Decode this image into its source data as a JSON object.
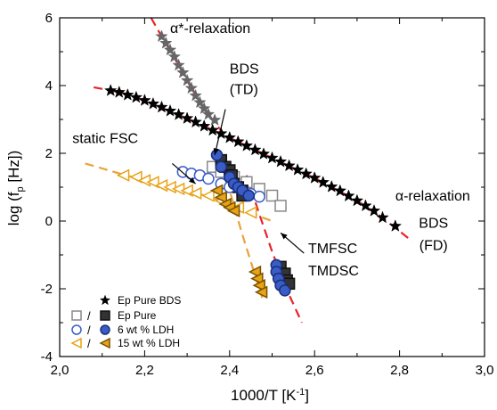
{
  "chart_data": {
    "type": "scatter",
    "xlabel": "1000/T [K",
    "xlabel_sup": "-1",
    "xlabel_end": "]",
    "ylabel_pre": "log (f",
    "ylabel_sub": "p",
    "ylabel_post": " [Hz])",
    "xlim": [
      2.0,
      3.0
    ],
    "ylim": [
      -4,
      6
    ],
    "x_ticks": [
      2.0,
      2.2,
      2.4,
      2.6,
      2.8,
      3.0
    ],
    "x_tick_labels": [
      "2,0",
      "2,2",
      "2,4",
      "2,6",
      "2,8",
      "3,0"
    ],
    "y_ticks": [
      -4,
      -2,
      0,
      2,
      4,
      6
    ],
    "y_tick_labels": [
      "-4",
      "-2",
      "0",
      "2",
      "4",
      "6"
    ],
    "grid": false,
    "legend_position": "bottom-left",
    "series": [
      {
        "name": "Ep Pure BDS",
        "marker": "star",
        "color": "#000000",
        "filled": true,
        "points": [
          [
            2.12,
            3.85
          ],
          [
            2.14,
            3.8
          ],
          [
            2.16,
            3.72
          ],
          [
            2.18,
            3.65
          ],
          [
            2.2,
            3.56
          ],
          [
            2.22,
            3.46
          ],
          [
            2.24,
            3.36
          ],
          [
            2.26,
            3.25
          ],
          [
            2.28,
            3.14
          ],
          [
            2.3,
            3.03
          ],
          [
            2.32,
            2.92
          ],
          [
            2.34,
            2.8
          ],
          [
            2.36,
            2.68
          ],
          [
            2.38,
            2.58
          ],
          [
            2.4,
            2.46
          ],
          [
            2.42,
            2.34
          ],
          [
            2.44,
            2.22
          ],
          [
            2.46,
            2.1
          ],
          [
            2.48,
            1.98
          ],
          [
            2.5,
            1.86
          ],
          [
            2.52,
            1.75
          ],
          [
            2.54,
            1.63
          ],
          [
            2.56,
            1.51
          ],
          [
            2.58,
            1.39
          ],
          [
            2.6,
            1.27
          ],
          [
            2.62,
            1.14
          ],
          [
            2.64,
            1.01
          ],
          [
            2.66,
            0.89
          ],
          [
            2.68,
            0.74
          ],
          [
            2.7,
            0.6
          ],
          [
            2.72,
            0.45
          ],
          [
            2.74,
            0.3
          ],
          [
            2.76,
            0.1
          ],
          [
            2.79,
            -0.15
          ]
        ]
      },
      {
        "name": "",
        "marker": "star",
        "color": "#666666",
        "filled": true,
        "points": [
          [
            2.24,
            5.45
          ],
          [
            2.25,
            5.25
          ],
          [
            2.26,
            5.05
          ],
          [
            2.27,
            4.85
          ],
          [
            2.28,
            4.6
          ],
          [
            2.29,
            4.38
          ],
          [
            2.3,
            4.15
          ],
          [
            2.31,
            3.92
          ],
          [
            2.32,
            3.7
          ],
          [
            2.33,
            3.5
          ],
          [
            2.34,
            3.32
          ],
          [
            2.35,
            3.15
          ],
          [
            2.365,
            2.98
          ]
        ]
      },
      {
        "name": "Ep Pure",
        "marker": "square",
        "color": "#888888",
        "filled": false,
        "points": [
          [
            2.36,
            1.6
          ],
          [
            2.38,
            1.45
          ],
          [
            2.41,
            1.3
          ],
          [
            2.44,
            1.15
          ],
          [
            2.47,
            0.95
          ],
          [
            2.5,
            0.75
          ],
          [
            2.52,
            0.45
          ]
        ]
      },
      {
        "name": "",
        "marker": "square",
        "color": "#333333",
        "filled": true,
        "points": [
          [
            2.38,
            1.8
          ],
          [
            2.39,
            1.6
          ],
          [
            2.4,
            1.5
          ],
          [
            2.405,
            1.35
          ],
          [
            2.41,
            1.1
          ],
          [
            2.42,
            1.0
          ],
          [
            2.43,
            0.9
          ],
          [
            2.43,
            0.75
          ],
          [
            2.52,
            -1.35
          ],
          [
            2.53,
            -1.55
          ],
          [
            2.535,
            -1.75
          ],
          [
            2.54,
            -1.85
          ]
        ]
      },
      {
        "name": "6 wt % LDH",
        "marker": "circle",
        "color": "#3a5cc7",
        "filled": false,
        "points": [
          [
            2.29,
            1.45
          ],
          [
            2.31,
            1.4
          ],
          [
            2.33,
            1.35
          ],
          [
            2.35,
            1.25
          ],
          [
            2.38,
            1.1
          ],
          [
            2.4,
            1.0
          ],
          [
            2.42,
            1.0
          ],
          [
            2.45,
            0.8
          ],
          [
            2.47,
            0.72
          ]
        ]
      },
      {
        "name": "",
        "marker": "circle",
        "color": "#3a5cc7",
        "filled": true,
        "points": [
          [
            2.37,
            1.95
          ],
          [
            2.38,
            1.6
          ],
          [
            2.4,
            1.3
          ],
          [
            2.41,
            1.1
          ],
          [
            2.42,
            1.0
          ],
          [
            2.43,
            0.9
          ],
          [
            2.445,
            0.75
          ],
          [
            2.51,
            -1.3
          ],
          [
            2.51,
            -1.5
          ],
          [
            2.515,
            -1.7
          ],
          [
            2.52,
            -1.9
          ],
          [
            2.53,
            -2.05
          ]
        ]
      },
      {
        "name": "15 wt % LDH",
        "marker": "triangle-left",
        "color": "#e8a317",
        "filled": false,
        "points": [
          [
            2.15,
            1.35
          ],
          [
            2.18,
            1.3
          ],
          [
            2.2,
            1.2
          ],
          [
            2.22,
            1.15
          ],
          [
            2.24,
            1.05
          ],
          [
            2.26,
            1.0
          ],
          [
            2.28,
            0.95
          ],
          [
            2.3,
            0.9
          ],
          [
            2.32,
            0.82
          ],
          [
            2.35,
            0.75
          ],
          [
            2.38,
            0.6
          ],
          [
            2.42,
            0.4
          ],
          [
            2.45,
            0.25
          ]
        ]
      },
      {
        "name": "",
        "marker": "triangle-left",
        "color": "#e8a317",
        "filled": true,
        "points": [
          [
            2.37,
            0.9
          ],
          [
            2.38,
            0.7
          ],
          [
            2.39,
            0.5
          ],
          [
            2.4,
            0.4
          ],
          [
            2.41,
            0.3
          ],
          [
            2.46,
            -1.5
          ],
          [
            2.465,
            -1.7
          ],
          [
            2.47,
            -1.9
          ],
          [
            2.475,
            -2.1
          ]
        ]
      }
    ],
    "fit_lines": [
      {
        "color": "#e8232a",
        "dash": "10,6",
        "points": [
          [
            2.08,
            3.95
          ],
          [
            2.15,
            3.78
          ],
          [
            2.2,
            3.56
          ],
          [
            2.3,
            3.03
          ],
          [
            2.4,
            2.46
          ],
          [
            2.5,
            1.86
          ],
          [
            2.6,
            1.27
          ],
          [
            2.7,
            0.6
          ],
          [
            2.76,
            0.1
          ],
          [
            2.8,
            -0.3
          ],
          [
            2.83,
            -0.6
          ]
        ]
      },
      {
        "color": "#e8232a",
        "dash": "10,6",
        "points": [
          [
            2.215,
            6.0
          ],
          [
            2.24,
            5.45
          ],
          [
            2.28,
            4.6
          ],
          [
            2.32,
            3.7
          ],
          [
            2.36,
            2.98
          ],
          [
            2.385,
            2.6
          ]
        ]
      },
      {
        "color": "#e8232a",
        "dash": "10,6",
        "points": [
          [
            2.44,
            1.35
          ],
          [
            2.47,
            0.2
          ],
          [
            2.5,
            -0.9
          ],
          [
            2.53,
            -1.9
          ],
          [
            2.57,
            -3.0
          ]
        ]
      },
      {
        "color": "#e8a33a",
        "dash": "10,6",
        "points": [
          [
            2.06,
            1.7
          ],
          [
            2.15,
            1.37
          ],
          [
            2.25,
            1.02
          ],
          [
            2.35,
            0.73
          ],
          [
            2.45,
            0.23
          ],
          [
            2.5,
            0.0
          ]
        ]
      },
      {
        "color": "#e8a33a",
        "dash": "10,6",
        "points": [
          [
            2.37,
            2.0
          ],
          [
            2.4,
            0.9
          ],
          [
            2.43,
            -0.4
          ],
          [
            2.46,
            -1.6
          ],
          [
            2.48,
            -2.4
          ]
        ]
      }
    ],
    "annotations": [
      {
        "label": "α*-relaxation",
        "x": 2.26,
        "y": 5.55
      },
      {
        "label": "BDS",
        "x": 2.4,
        "y": 4.35
      },
      {
        "label": "(TD)",
        "x": 2.4,
        "y": 3.75
      },
      {
        "label": "static FSC",
        "x": 2.03,
        "y": 2.3
      },
      {
        "label": "α-relaxation",
        "x": 2.79,
        "y": 0.6
      },
      {
        "label": "BDS",
        "x": 2.88,
        "y": -0.2
      },
      {
        "label": "(FD)",
        "x": 2.88,
        "y": -0.85
      },
      {
        "label": "TMFSC",
        "x": 2.585,
        "y": -0.95
      },
      {
        "label": "TMDSC",
        "x": 2.585,
        "y": -1.6
      }
    ],
    "legend": [
      {
        "label": "Ep Pure BDS"
      },
      {
        "label": "Ep Pure"
      },
      {
        "label": "6 wt % LDH"
      },
      {
        "label": "15 wt % LDH"
      }
    ]
  }
}
